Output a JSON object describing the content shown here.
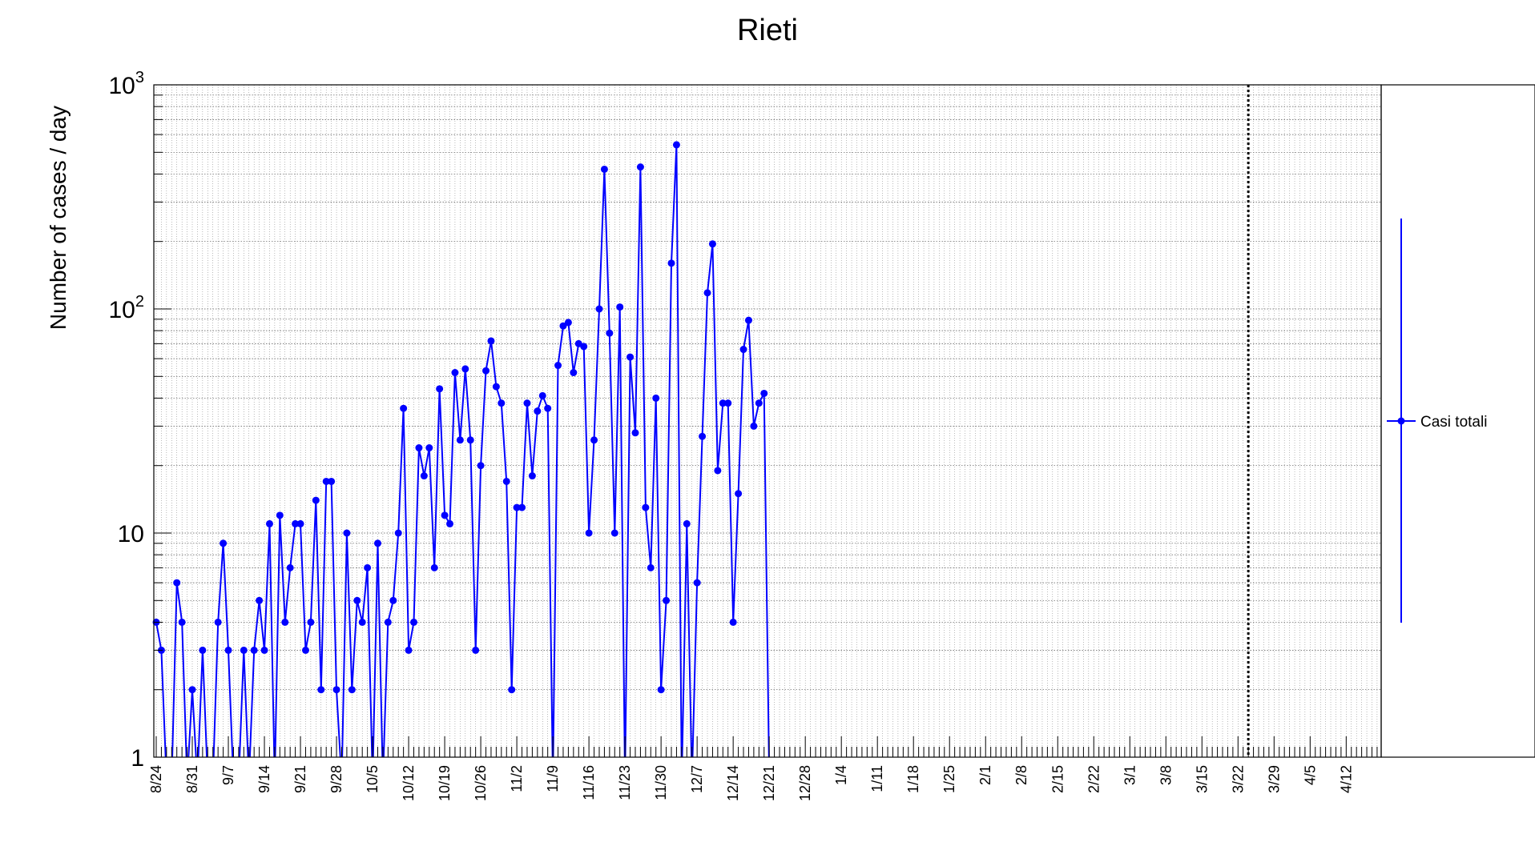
{
  "chart_data": {
    "type": "line",
    "title": "Rieti",
    "xlabel": "",
    "ylabel": "Number of cases / day",
    "yscale": "log",
    "ylim": [
      1,
      1000
    ],
    "ytick_labels": [
      {
        "value": 1,
        "base": "1",
        "exp": ""
      },
      {
        "value": 10,
        "base": "10",
        "exp": ""
      },
      {
        "value": 100,
        "base": "10",
        "exp": "2"
      },
      {
        "value": 1000,
        "base": "10",
        "exp": "3"
      }
    ],
    "grid": true,
    "x_start_date": "8/24",
    "x_range_days": [
      0,
      241
    ],
    "x_tick_labels": [
      "8/24",
      "8/31",
      "9/7",
      "9/14",
      "9/21",
      "9/28",
      "10/5",
      "10/12",
      "10/19",
      "10/26",
      "11/2",
      "11/9",
      "11/16",
      "11/23",
      "11/30",
      "12/7",
      "12/14",
      "12/21",
      "12/28",
      "1/4",
      "1/11",
      "1/18",
      "1/25",
      "2/1",
      "2/8",
      "2/15",
      "2/22",
      "3/1",
      "3/8",
      "3/15",
      "3/22",
      "3/29",
      "4/5",
      "4/12"
    ],
    "vertical_marker_day": 212,
    "series": [
      {
        "name": "Casi totali",
        "color": "#0000ff",
        "values": [
          4,
          3,
          0,
          0,
          6,
          4,
          0,
          2,
          0,
          3,
          0,
          0,
          4,
          9,
          3,
          0,
          0,
          3,
          0,
          3,
          5,
          3,
          11,
          0,
          12,
          4,
          7,
          11,
          11,
          3,
          4,
          14,
          2,
          17,
          17,
          2,
          0,
          10,
          2,
          5,
          4,
          7,
          0,
          9,
          0,
          4,
          5,
          10,
          36,
          3,
          4,
          24,
          18,
          24,
          7,
          44,
          12,
          11,
          52,
          26,
          54,
          26,
          3,
          20,
          53,
          72,
          45,
          38,
          17,
          2,
          13,
          13,
          38,
          18,
          35,
          41,
          36,
          0,
          56,
          84,
          87,
          52,
          70,
          68,
          10,
          26,
          100,
          420,
          78,
          10,
          102,
          0,
          61,
          28,
          430,
          13,
          7,
          40,
          2,
          5,
          160,
          540,
          0,
          11,
          0,
          6,
          27,
          118,
          195,
          19,
          38,
          38,
          4,
          15,
          66,
          89,
          30,
          38,
          42,
          0
        ]
      }
    ],
    "legend": {
      "position": "right",
      "label": "Casi totali"
    }
  }
}
